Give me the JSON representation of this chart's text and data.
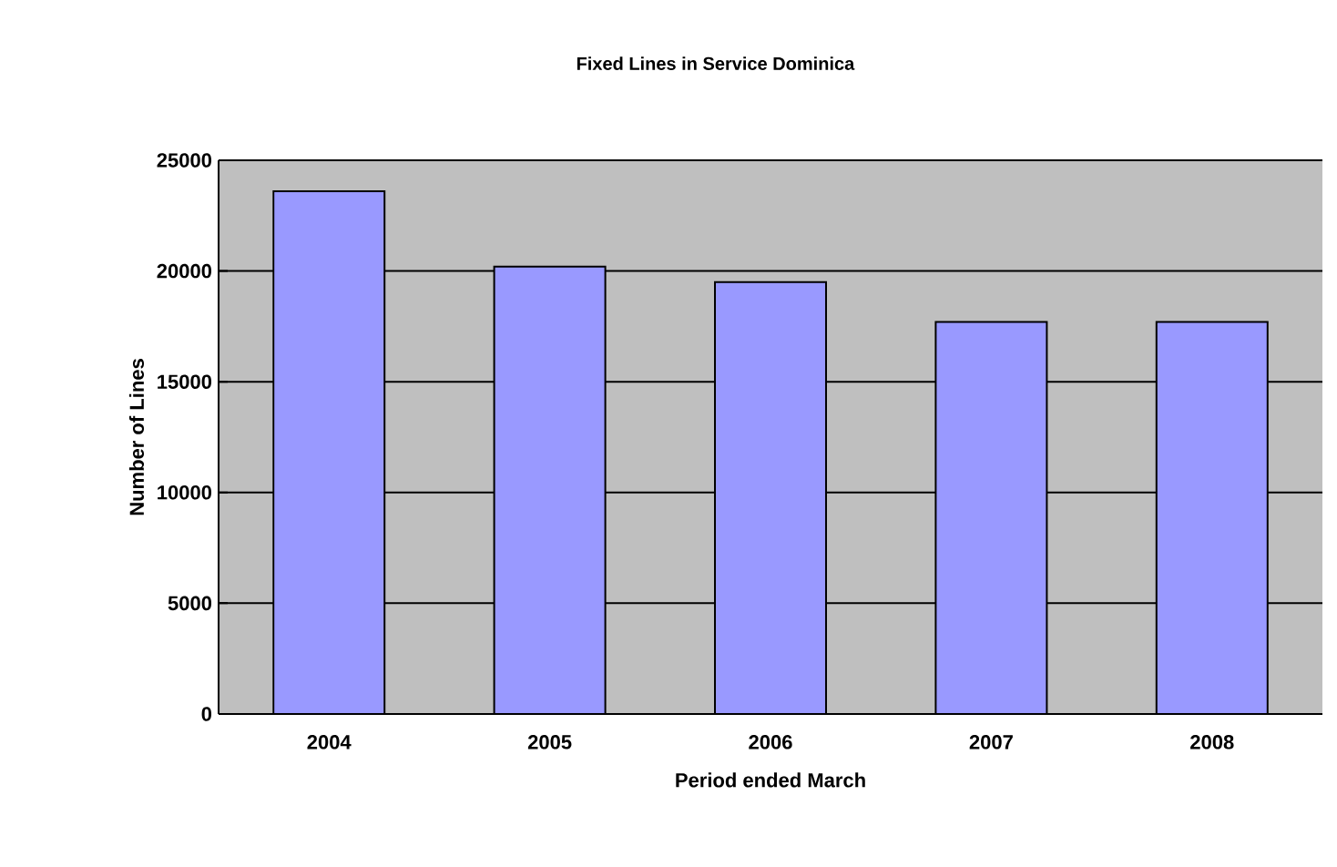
{
  "chart_data": {
    "type": "bar",
    "title": "Fixed Lines in Service Dominica",
    "xlabel": "Period ended March",
    "ylabel": "Number of Lines",
    "categories": [
      "2004",
      "2005",
      "2006",
      "2007",
      "2008"
    ],
    "values": [
      23600,
      20200,
      19500,
      17700,
      17700
    ],
    "color": "#9999ff",
    "ylim": [
      0,
      25000
    ],
    "yticks": [
      0,
      5000,
      10000,
      15000,
      20000,
      25000
    ],
    "grid": "y"
  }
}
